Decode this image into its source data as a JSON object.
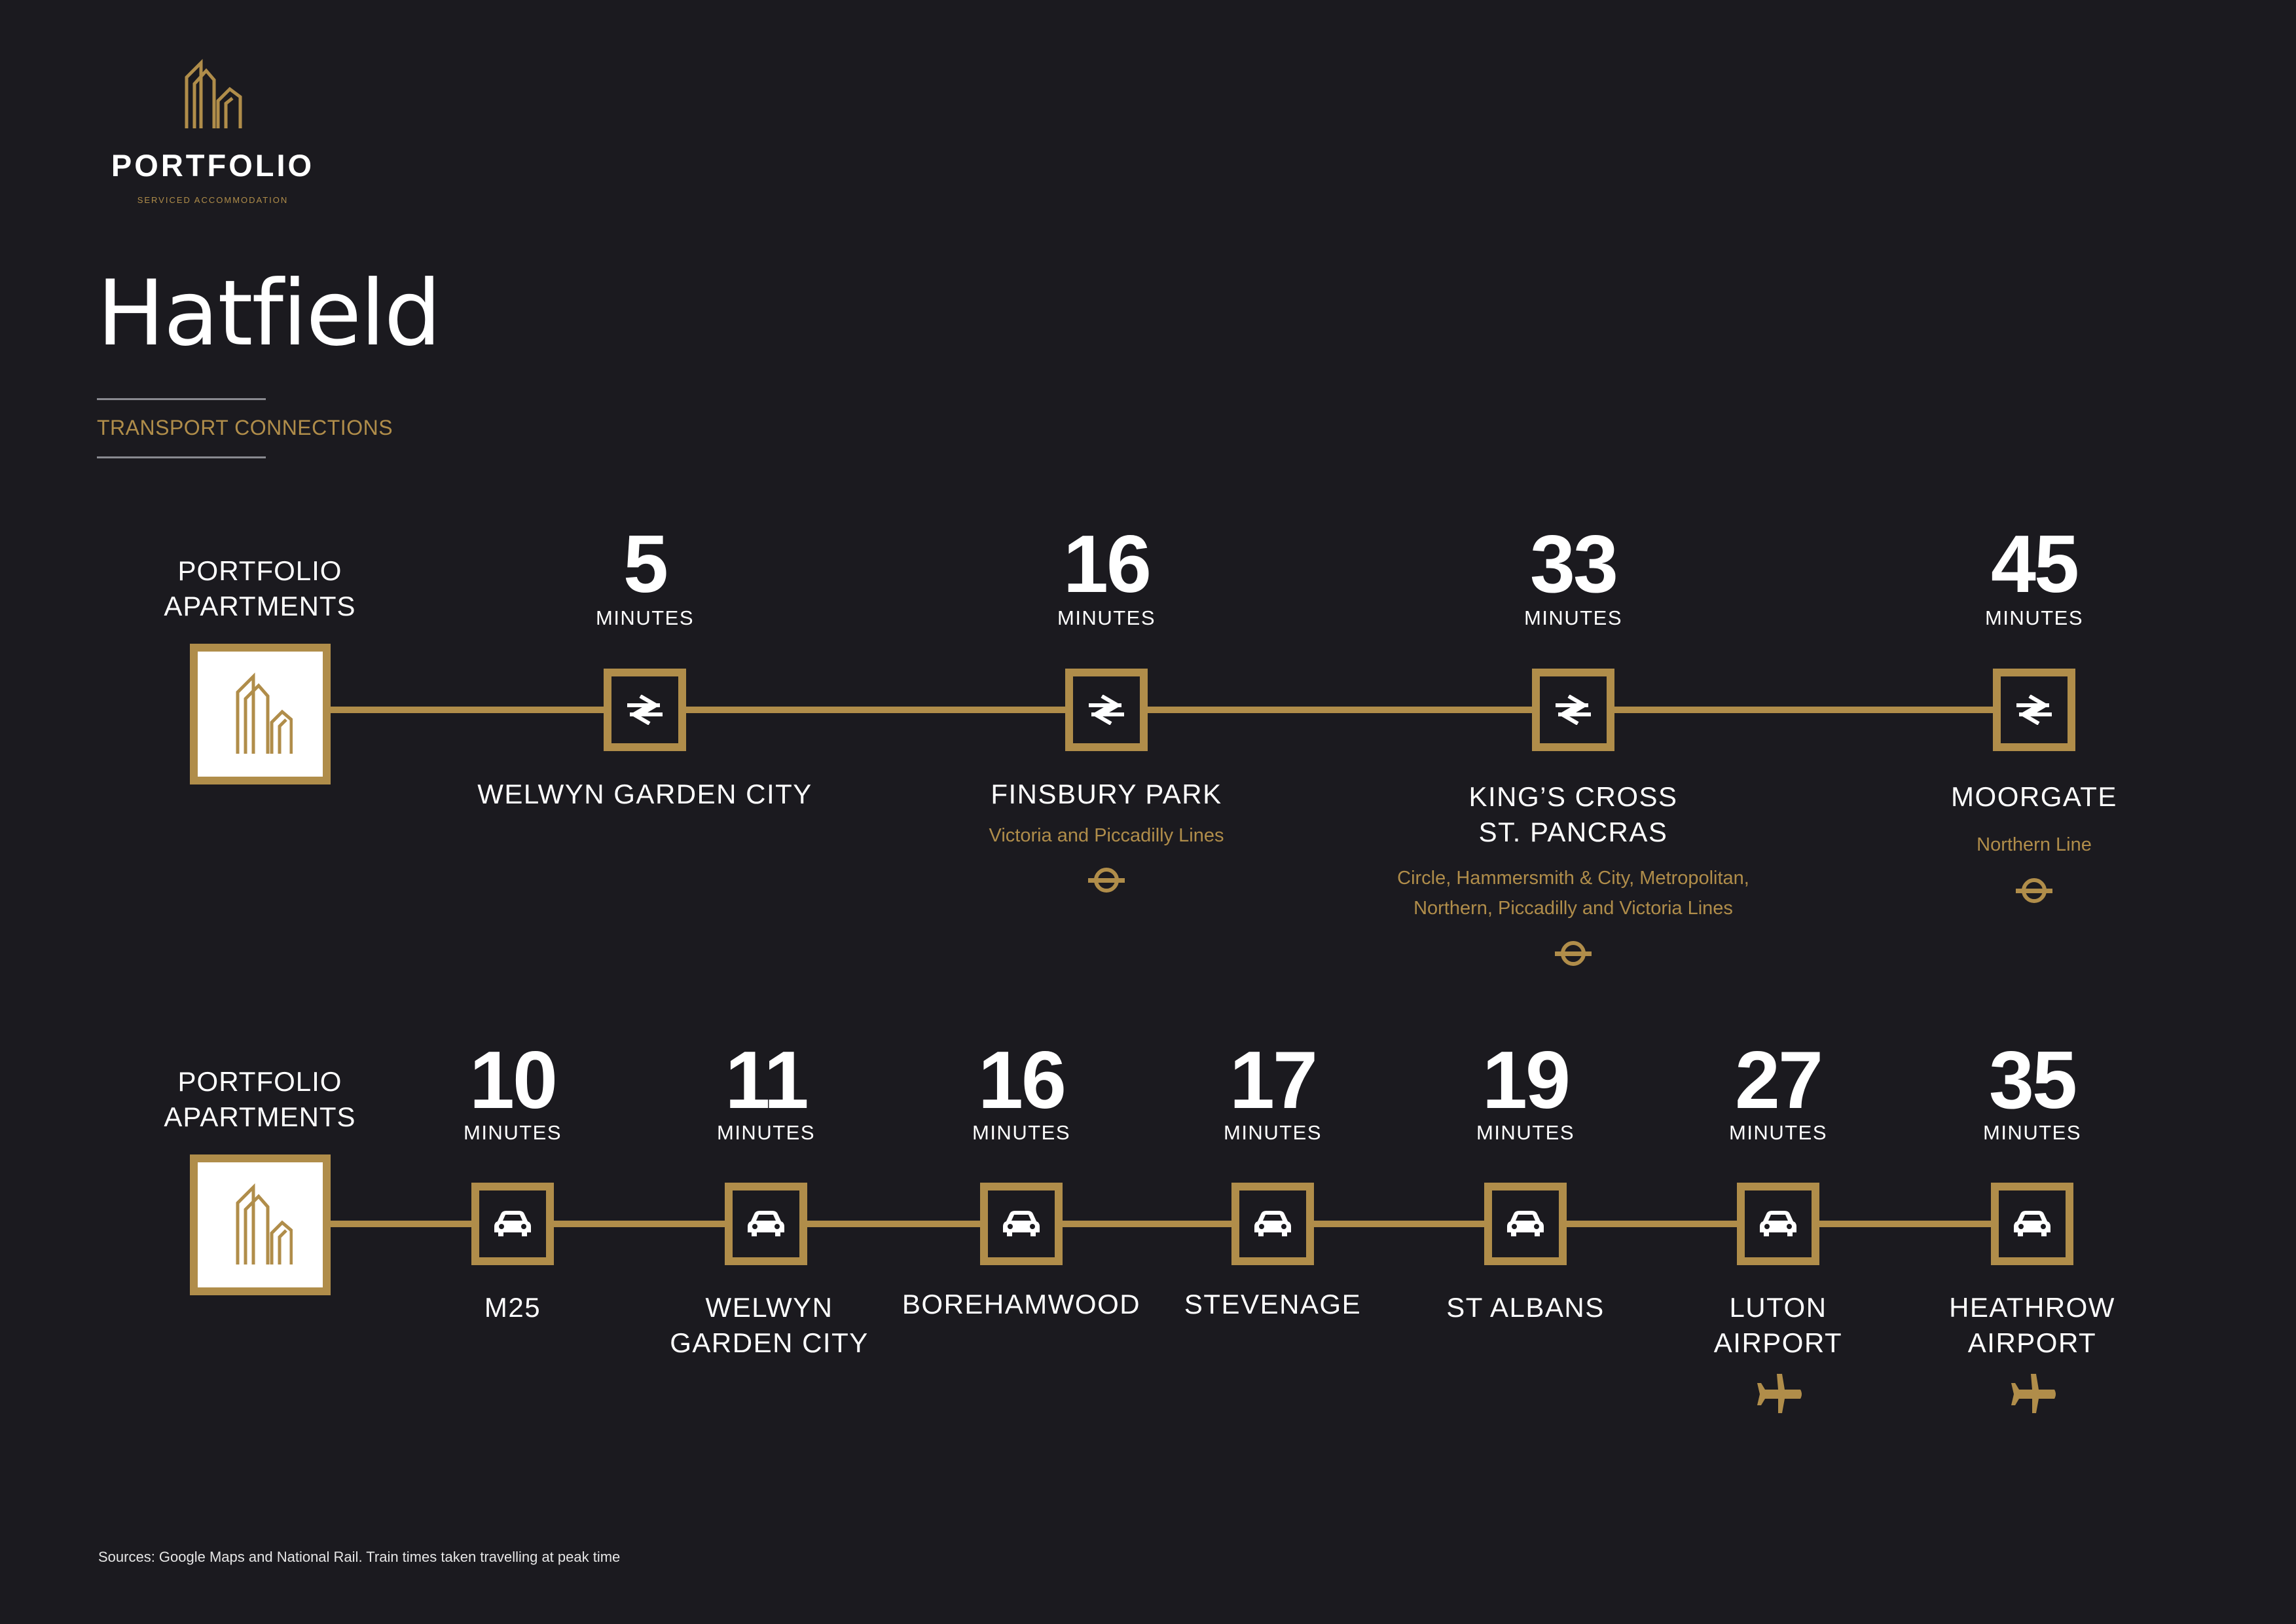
{
  "brand": {
    "name": "PORTFOLIO",
    "tagline": "SERVICED ACCOMMODATION",
    "logo_icon": "building-logo-icon"
  },
  "title": "Hatfield",
  "section_label": "TRANSPORT CONNECTIONS",
  "colors": {
    "background": "#1b1a1f",
    "accent": "#b08d4a",
    "text": "#ffffff"
  },
  "train": {
    "origin": "PORTFOLIO APARTMENTS",
    "mode_icon": "national-rail-icon",
    "stops": [
      {
        "minutes": "5",
        "unit": "MINUTES",
        "name": "WELWYN GARDEN CITY",
        "lines": "",
        "underground": false
      },
      {
        "minutes": "16",
        "unit": "MINUTES",
        "name": "FINSBURY PARK",
        "lines": "Victoria and Piccadilly Lines",
        "underground": true
      },
      {
        "minutes": "33",
        "unit": "MINUTES",
        "name": "KING’S CROSS ST. PANCRAS",
        "lines": "Circle, Hammersmith & City, Metropolitan, Northern, Piccadilly and Victoria Lines",
        "underground": true
      },
      {
        "minutes": "45",
        "unit": "MINUTES",
        "name": "MOORGATE",
        "lines": "Northern Line",
        "underground": true
      }
    ]
  },
  "road": {
    "origin": "PORTFOLIO APARTMENTS",
    "mode_icon": "car-icon",
    "stops": [
      {
        "minutes": "10",
        "unit": "MINUTES",
        "name": "M25",
        "airport": false
      },
      {
        "minutes": "11",
        "unit": "MINUTES",
        "name": "WELWYN GARDEN CITY",
        "airport": false
      },
      {
        "minutes": "16",
        "unit": "MINUTES",
        "name": "BOREHAMWOOD",
        "airport": false
      },
      {
        "minutes": "17",
        "unit": "MINUTES",
        "name": "STEVENAGE",
        "airport": false
      },
      {
        "minutes": "19",
        "unit": "MINUTES",
        "name": "ST ALBANS",
        "airport": false
      },
      {
        "minutes": "27",
        "unit": "MINUTES",
        "name": "LUTON AIRPORT",
        "airport": true
      },
      {
        "minutes": "35",
        "unit": "MINUTES",
        "name": "HEATHROW AIRPORT",
        "airport": true
      }
    ]
  },
  "sources": "Sources: Google Maps and National Rail. Train times taken travelling at peak time"
}
